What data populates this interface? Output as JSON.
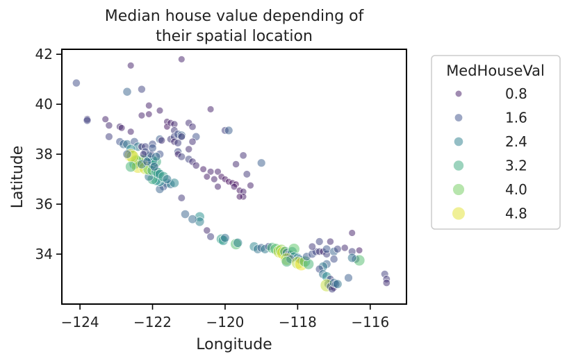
{
  "chart_data": {
    "type": "scatter",
    "title_lines": [
      "Median house value depending of",
      "their spatial location"
    ],
    "xlabel": "Longitude",
    "ylabel": "Latitude",
    "xlim": [
      -124.5,
      -115.0
    ],
    "ylim": [
      32.0,
      42.2
    ],
    "xticks": [
      -124,
      -122,
      -120,
      -118,
      -116
    ],
    "xtick_labels": [
      "−124",
      "−122",
      "−120",
      "−118",
      "−116"
    ],
    "yticks": [
      34,
      36,
      38,
      40,
      42
    ],
    "ytick_labels": [
      "34",
      "36",
      "38",
      "40",
      "42"
    ],
    "grid": false,
    "legend": {
      "title": "MedHouseVal",
      "placement": "outside-right",
      "entries": [
        {
          "label": "0.8",
          "value": 0.8
        },
        {
          "label": "1.6",
          "value": 1.6
        },
        {
          "label": "2.4",
          "value": 2.4
        },
        {
          "label": "3.2",
          "value": 3.2
        },
        {
          "label": "4.0",
          "value": 4.0
        },
        {
          "label": "4.8",
          "value": 4.8
        }
      ]
    },
    "colormap": "viridis",
    "hue_range": [
      0.5,
      5.0
    ],
    "points": [
      [
        -124.1,
        40.85,
        1.5
      ],
      [
        -122.6,
        41.55,
        0.9
      ],
      [
        -121.2,
        41.8,
        0.9
      ],
      [
        -122.3,
        40.6,
        1.4
      ],
      [
        -122.7,
        40.5,
        1.9
      ],
      [
        -122.1,
        39.95,
        0.9
      ],
      [
        -122.1,
        39.6,
        0.8
      ],
      [
        -121.8,
        39.75,
        0.9
      ],
      [
        -122.3,
        39.55,
        0.9
      ],
      [
        -121.6,
        39.3,
        0.8
      ],
      [
        -121.6,
        39.1,
        0.7
      ],
      [
        -121.5,
        39.25,
        0.9
      ],
      [
        -121.4,
        39.2,
        1.0
      ],
      [
        -121.4,
        38.95,
        1.2
      ],
      [
        -121.0,
        39.25,
        1.1
      ],
      [
        -120.9,
        39.1,
        1.1
      ],
      [
        -120.4,
        39.8,
        0.9
      ],
      [
        -120.0,
        38.95,
        1.3
      ],
      [
        -119.9,
        38.95,
        1.8
      ],
      [
        -123.8,
        39.4,
        1.2
      ],
      [
        -123.8,
        39.35,
        1.4
      ],
      [
        -123.3,
        39.4,
        0.9
      ],
      [
        -123.2,
        39.15,
        1.0
      ],
      [
        -122.9,
        39.1,
        1.0
      ],
      [
        -122.85,
        39.05,
        0.9
      ],
      [
        -122.6,
        38.9,
        0.9
      ],
      [
        -123.2,
        38.7,
        1.3
      ],
      [
        -122.9,
        38.5,
        1.6
      ],
      [
        -122.8,
        38.4,
        2.0
      ],
      [
        -122.7,
        38.4,
        2.1
      ],
      [
        -122.5,
        38.5,
        1.7
      ],
      [
        -122.4,
        38.3,
        2.3
      ],
      [
        -122.6,
        38.2,
        2.6
      ],
      [
        -122.3,
        38.3,
        1.1
      ],
      [
        -122.2,
        38.3,
        1.4
      ],
      [
        -122.0,
        38.4,
        1.5
      ],
      [
        -121.8,
        38.6,
        1.8
      ],
      [
        -121.5,
        38.6,
        1.2
      ],
      [
        -121.4,
        38.7,
        1.4
      ],
      [
        -121.3,
        38.8,
        1.6
      ],
      [
        -121.2,
        38.75,
        1.9
      ],
      [
        -121.4,
        38.5,
        1.0
      ],
      [
        -121.3,
        38.45,
        1.3
      ],
      [
        -121.2,
        38.7,
        1.2
      ],
      [
        -120.8,
        38.7,
        1.6
      ],
      [
        -120.9,
        38.5,
        1.1
      ],
      [
        -121.0,
        38.2,
        1.0
      ],
      [
        -121.3,
        38.1,
        1.5
      ],
      [
        -121.3,
        38.0,
        0.9
      ],
      [
        -121.2,
        37.9,
        1.3
      ],
      [
        -121.0,
        37.8,
        1.4
      ],
      [
        -120.9,
        37.7,
        1.1
      ],
      [
        -120.8,
        37.55,
        1.0
      ],
      [
        -120.6,
        37.4,
        0.8
      ],
      [
        -120.4,
        37.3,
        0.9
      ],
      [
        -120.2,
        37.3,
        0.9
      ],
      [
        -120.1,
        37.1,
        0.7
      ],
      [
        -120.0,
        37.0,
        0.7
      ],
      [
        -119.9,
        36.9,
        0.6
      ],
      [
        -119.8,
        36.85,
        0.7
      ],
      [
        -119.7,
        36.8,
        0.6
      ],
      [
        -119.75,
        36.7,
        0.8
      ],
      [
        -119.6,
        36.55,
        0.7
      ],
      [
        -119.5,
        36.5,
        0.9
      ],
      [
        -119.5,
        36.3,
        0.8
      ],
      [
        -119.6,
        36.3,
        0.7
      ],
      [
        -119.3,
        36.75,
        0.9
      ],
      [
        -119.4,
        37.2,
        1.2
      ],
      [
        -119.7,
        37.6,
        1.0
      ],
      [
        -119.5,
        37.95,
        1.1
      ],
      [
        -119.0,
        37.65,
        1.8
      ],
      [
        -120.3,
        37.0,
        0.9
      ],
      [
        -120.5,
        37.1,
        0.8
      ],
      [
        -120.2,
        36.7,
        0.9
      ],
      [
        -121.6,
        36.85,
        2.4
      ],
      [
        -121.7,
        36.7,
        1.6
      ],
      [
        -121.8,
        36.6,
        1.9
      ],
      [
        -121.8,
        36.9,
        2.6
      ],
      [
        -121.9,
        36.95,
        2.8
      ],
      [
        -122.0,
        37.0,
        3.2
      ],
      [
        -122.1,
        37.1,
        2.2
      ],
      [
        -121.5,
        36.8,
        2.1
      ],
      [
        -121.4,
        36.85,
        2.5
      ],
      [
        -121.2,
        36.25,
        1.2
      ],
      [
        -121.1,
        35.6,
        1.9
      ],
      [
        -120.7,
        35.5,
        2.7
      ],
      [
        -120.7,
        35.3,
        2.4
      ],
      [
        -120.9,
        35.4,
        2.0
      ],
      [
        -120.5,
        34.95,
        1.0
      ],
      [
        -120.4,
        34.7,
        1.3
      ],
      [
        -120.1,
        34.6,
        3.0
      ],
      [
        -120.05,
        34.55,
        2.8
      ],
      [
        -120.0,
        34.65,
        2.1
      ],
      [
        -119.7,
        34.4,
        3.6
      ],
      [
        -119.65,
        34.45,
        2.4
      ],
      [
        -119.2,
        34.3,
        2.5
      ],
      [
        -119.1,
        34.2,
        2.2
      ],
      [
        -119.0,
        34.25,
        1.9
      ],
      [
        -118.9,
        34.2,
        2.3
      ],
      [
        -118.8,
        34.3,
        1.5
      ],
      [
        -118.7,
        34.25,
        3.4
      ],
      [
        -118.6,
        34.2,
        3.7
      ],
      [
        -118.5,
        34.1,
        4.6
      ],
      [
        -118.45,
        34.15,
        4.2
      ],
      [
        -118.4,
        34.05,
        4.8
      ],
      [
        -118.35,
        34.1,
        3.0
      ],
      [
        -118.3,
        34.05,
        2.2
      ],
      [
        -118.25,
        34.0,
        1.4
      ],
      [
        -118.2,
        34.0,
        1.6
      ],
      [
        -118.15,
        34.1,
        2.7
      ],
      [
        -118.1,
        34.2,
        3.8
      ],
      [
        -118.1,
        33.9,
        2.5
      ],
      [
        -118.0,
        33.85,
        2.4
      ],
      [
        -117.95,
        33.8,
        2.1
      ],
      [
        -117.9,
        33.75,
        2.0
      ],
      [
        -118.3,
        33.8,
        4.5
      ],
      [
        -118.2,
        33.8,
        1.9
      ],
      [
        -118.3,
        33.7,
        3.3
      ],
      [
        -118.0,
        33.65,
        4.5
      ],
      [
        -117.9,
        33.6,
        4.9
      ],
      [
        -117.8,
        33.7,
        3.6
      ],
      [
        -117.7,
        33.6,
        3.4
      ],
      [
        -117.75,
        33.9,
        1.8
      ],
      [
        -117.6,
        34.0,
        1.6
      ],
      [
        -117.5,
        34.1,
        1.4
      ],
      [
        -117.4,
        34.1,
        1.2
      ],
      [
        -117.3,
        34.1,
        1.0
      ],
      [
        -117.2,
        34.0,
        1.3
      ],
      [
        -117.2,
        34.2,
        1.7
      ],
      [
        -117.0,
        34.1,
        1.9
      ],
      [
        -116.9,
        34.2,
        1.4
      ],
      [
        -116.7,
        34.25,
        1.0
      ],
      [
        -116.5,
        34.1,
        1.3
      ],
      [
        -116.4,
        33.8,
        1.6
      ],
      [
        -116.3,
        33.75,
        3.6
      ],
      [
        -116.5,
        33.85,
        2.2
      ],
      [
        -116.5,
        34.85,
        0.9
      ],
      [
        -116.3,
        34.15,
        0.8
      ],
      [
        -117.1,
        34.5,
        1.0
      ],
      [
        -117.4,
        34.5,
        1.4
      ],
      [
        -117.6,
        34.3,
        1.2
      ],
      [
        -117.0,
        33.8,
        1.5
      ],
      [
        -117.2,
        33.6,
        1.9
      ],
      [
        -117.3,
        33.5,
        2.3
      ],
      [
        -117.4,
        33.4,
        1.5
      ],
      [
        -117.3,
        33.2,
        2.1
      ],
      [
        -117.2,
        33.1,
        2.6
      ],
      [
        -117.1,
        33.0,
        1.3
      ],
      [
        -117.15,
        32.8,
        2.0
      ],
      [
        -117.2,
        32.75,
        4.6
      ],
      [
        -117.1,
        32.7,
        1.5
      ],
      [
        -117.0,
        32.65,
        0.9
      ],
      [
        -117.05,
        32.6,
        1.3
      ],
      [
        -117.0,
        32.85,
        2.1
      ],
      [
        -116.95,
        32.8,
        1.6
      ],
      [
        -116.9,
        32.8,
        2.2
      ],
      [
        -116.6,
        33.05,
        1.8
      ],
      [
        -115.6,
        33.2,
        1.3
      ],
      [
        -115.55,
        33.0,
        1.2
      ],
      [
        -115.55,
        32.85,
        1.1
      ],
      [
        -122.2,
        37.8,
        2.4
      ],
      [
        -122.3,
        37.75,
        3.9
      ],
      [
        -122.4,
        37.7,
        4.4
      ],
      [
        -122.45,
        37.75,
        3.6
      ],
      [
        -122.5,
        37.6,
        3.2
      ],
      [
        -122.4,
        37.5,
        4.8
      ],
      [
        -122.2,
        37.45,
        4.7
      ],
      [
        -122.1,
        37.4,
        4.0
      ],
      [
        -122.0,
        37.35,
        3.3
      ],
      [
        -121.9,
        37.3,
        2.9
      ],
      [
        -121.85,
        37.25,
        3.1
      ],
      [
        -121.8,
        37.2,
        2.5
      ],
      [
        -121.7,
        37.1,
        3.0
      ],
      [
        -121.6,
        37.0,
        2.2
      ],
      [
        -122.0,
        37.6,
        2.6
      ],
      [
        -121.9,
        37.7,
        3.2
      ],
      [
        -122.0,
        37.75,
        2.8
      ],
      [
        -122.1,
        37.9,
        2.6
      ],
      [
        -122.05,
        38.0,
        1.4
      ],
      [
        -121.8,
        38.0,
        1.6
      ],
      [
        -121.9,
        37.9,
        2.1
      ],
      [
        -122.6,
        37.95,
        4.9
      ],
      [
        -122.55,
        37.9,
        4.6
      ],
      [
        -122.7,
        38.0,
        1.9
      ],
      [
        -122.6,
        37.5,
        3.4
      ],
      [
        -122.3,
        37.6,
        2.3
      ],
      [
        -122.15,
        37.7,
        1.8
      ],
      [
        -121.95,
        37.5,
        1.9
      ],
      [
        -122.2,
        38.1,
        1.5
      ],
      [
        -122.25,
        38.0,
        1.2
      ],
      [
        -122.0,
        38.25,
        1.7
      ],
      [
        -121.75,
        38.55,
        1.1
      ]
    ]
  }
}
